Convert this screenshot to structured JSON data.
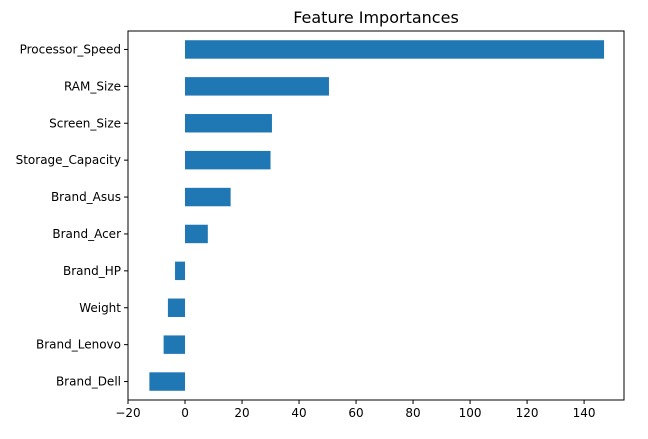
{
  "chart_data": {
    "type": "bar",
    "orientation": "horizontal",
    "title": "Feature Importances",
    "xlabel": "",
    "ylabel": "",
    "categories": [
      "Processor_Speed",
      "RAM_Size",
      "Screen_Size",
      "Storage_Capacity",
      "Brand_Asus",
      "Brand_Acer",
      "Brand_HP",
      "Weight",
      "Brand_Lenovo",
      "Brand_Dell"
    ],
    "values": [
      147.0,
      50.5,
      30.5,
      30.0,
      16.0,
      8.0,
      -3.5,
      -6.0,
      -7.5,
      -12.5
    ],
    "xlim": [
      -20,
      154
    ],
    "xticks": [
      -20,
      0,
      20,
      40,
      60,
      80,
      100,
      120,
      140
    ],
    "xtick_labels": [
      "−20",
      "0",
      "20",
      "40",
      "60",
      "80",
      "100",
      "120",
      "140"
    ],
    "bar_color": "#1f77b4",
    "grid": false,
    "legend": false
  }
}
